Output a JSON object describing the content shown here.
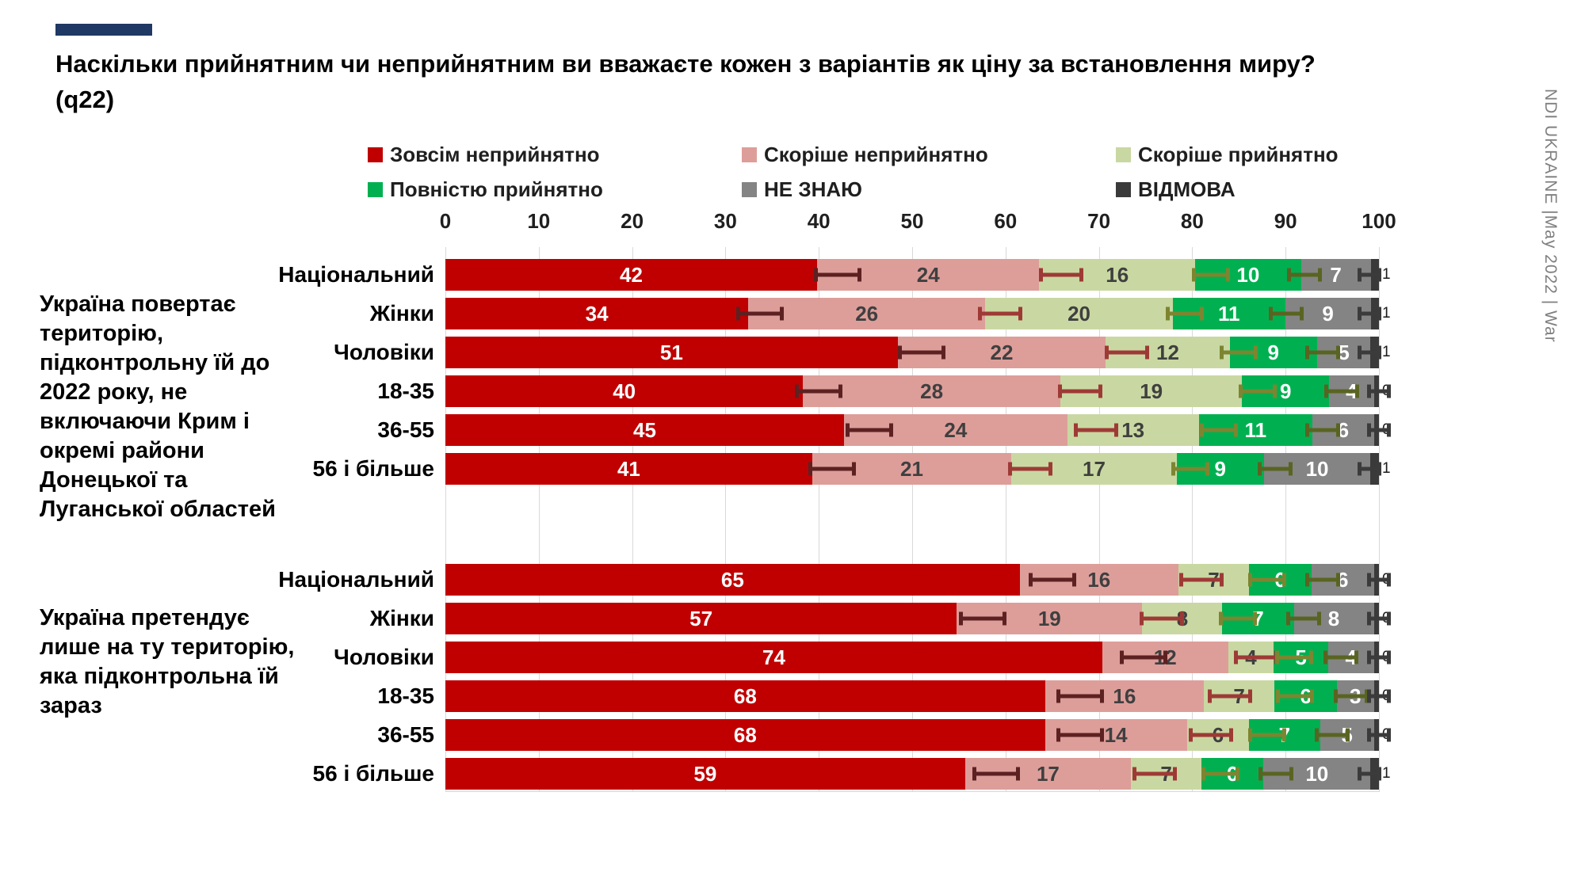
{
  "accent_color": "#1f3864",
  "title": {
    "line1": "Наскільки прийнятним чи неприйнятним ви вважаєте кожен з варіантів як ціну за встановлення миру?",
    "line2": "(q22)"
  },
  "watermark": "NDI UKRAINE |May 2022 | War",
  "legend": {
    "items": [
      {
        "label": "Зовсім неприйнятно",
        "color": "#c00000"
      },
      {
        "label": "Скоріше неприйнятно",
        "color": "#dd9e9a"
      },
      {
        "label": "Скоріше прийнятно",
        "color": "#c9d8a2"
      },
      {
        "label": "Повністю прийнятно",
        "color": "#00b050"
      },
      {
        "label": "НЕ ЗНАЮ",
        "color": "#848484"
      },
      {
        "label": "ВІДМОВА",
        "color": "#3a3a3a"
      }
    ]
  },
  "chart_data": {
    "type": "bar",
    "stacked": true,
    "orientation": "horizontal",
    "xlim": [
      0,
      100
    ],
    "axis_ticks": [
      0,
      10,
      20,
      30,
      40,
      50,
      60,
      70,
      80,
      90,
      100
    ],
    "grid": true,
    "series_names": [
      "Зовсім неприйнятно",
      "Скоріше неприйнятно",
      "Скоріше прийнятно",
      "Повністю прийнятно",
      "НЕ ЗНАЮ",
      "ВІДМОВА"
    ],
    "series_colors": [
      "#c00000",
      "#dd9e9a",
      "#c9d8a2",
      "#00b050",
      "#848484",
      "#3a3a3a"
    ],
    "value_label_colors": [
      "#ffffff",
      "#3f3f3f",
      "#3f3f3f",
      "#ffffff",
      "#ffffff",
      "#1a1a1a"
    ],
    "error_bar_colors": [
      "#5d2122",
      "#9e3a36",
      "#7d8531",
      "#5a6422",
      "#3b3b3b"
    ],
    "groups": [
      {
        "label": "Україна повертає територію, підконтрольну їй до 2022 року, не включаючи Крим і окремі райони Донецької та Луганської областей",
        "rows": [
          {
            "label": "Національний",
            "values": [
              42,
              24,
              16,
              10,
              7,
              1
            ]
          },
          {
            "label": "Жінки",
            "values": [
              34,
              26,
              20,
              11,
              9,
              1
            ]
          },
          {
            "label": "Чоловіки",
            "values": [
              51,
              22,
              12,
              9,
              5,
              1
            ]
          },
          {
            "label": "18-35",
            "values": [
              40,
              28,
              19,
              9,
              4,
              0
            ]
          },
          {
            "label": "36-55",
            "values": [
              45,
              24,
              13,
              11,
              6,
              0
            ]
          },
          {
            "label": "56 і більше",
            "values": [
              41,
              21,
              17,
              9,
              10,
              1
            ]
          }
        ]
      },
      {
        "label": "Україна претендує лише на ту територію, яка підконтрольна їй зараз",
        "rows": [
          {
            "label": "Національний",
            "values": [
              65,
              16,
              7,
              6,
              6,
              0
            ]
          },
          {
            "label": "Жінки",
            "values": [
              57,
              19,
              8,
              7,
              8,
              0
            ]
          },
          {
            "label": "Чоловіки",
            "values": [
              74,
              12,
              4,
              5,
              4,
              0
            ]
          },
          {
            "label": "18-35",
            "values": [
              68,
              16,
              7,
              6,
              3,
              0
            ]
          },
          {
            "label": "36-55",
            "values": [
              68,
              14,
              6,
              7,
              5,
              0
            ]
          },
          {
            "label": "56 і більше",
            "values": [
              59,
              17,
              7,
              6,
              10,
              1
            ]
          }
        ]
      }
    ]
  }
}
